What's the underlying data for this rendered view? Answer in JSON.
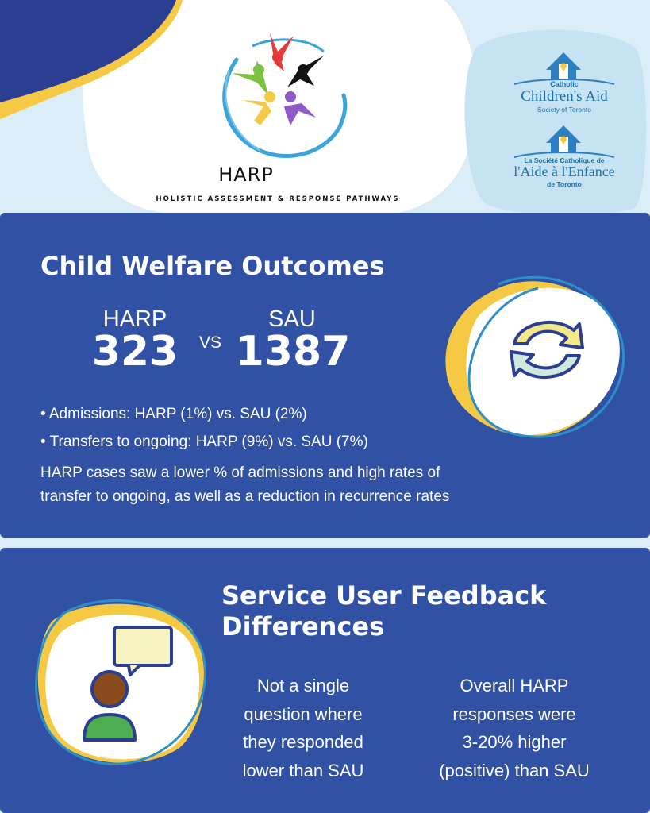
{
  "header": {
    "logo_title": "HARP",
    "logo_subtitle": "HOLISTIC ASSESSMENT & RESPONSE PATHWAYS",
    "org_en": {
      "line1": "Catholic",
      "line2": "Children's Aid",
      "line3": "Society of Toronto"
    },
    "org_fr": {
      "line1": "La Société Catholique de",
      "line2": "l'Aide à l'Enfance",
      "line3": "de Toronto"
    }
  },
  "outcomes": {
    "title": "Child Welfare Outcomes",
    "harp_label": "HARP",
    "harp_count": "323",
    "vs": "VS",
    "sau_label": "SAU",
    "sau_count": "1387",
    "bullets": [
      "• Admissions: HARP (1%) vs. SAU (2%)",
      "• Transfers to ongoing: HARP (9%) vs. SAU (7%)"
    ],
    "summary_line1": "HARP cases saw a lower % of admissions and high rates of",
    "summary_line2": "transfer to ongoing, as well as a reduction in recurrence rates"
  },
  "feedback": {
    "title_line1": "Service User Feedback",
    "title_line2": "Differences",
    "left_lines": [
      "Not a single",
      "question where",
      "they responded",
      "lower than SAU"
    ],
    "right_lines": [
      "Overall HARP",
      "responses were",
      "3-20% higher",
      "(positive) than SAU"
    ]
  },
  "colors": {
    "panel": "#3152a4",
    "background": "#dbeef8",
    "accent_yellow": "#f6c945",
    "accent_blue": "#2d8fc9",
    "navy": "#2c3e91"
  },
  "icons": [
    "harp-people-logo",
    "house-hands-logo",
    "refresh-arrows-icon",
    "person-speech-bubble-icon"
  ]
}
